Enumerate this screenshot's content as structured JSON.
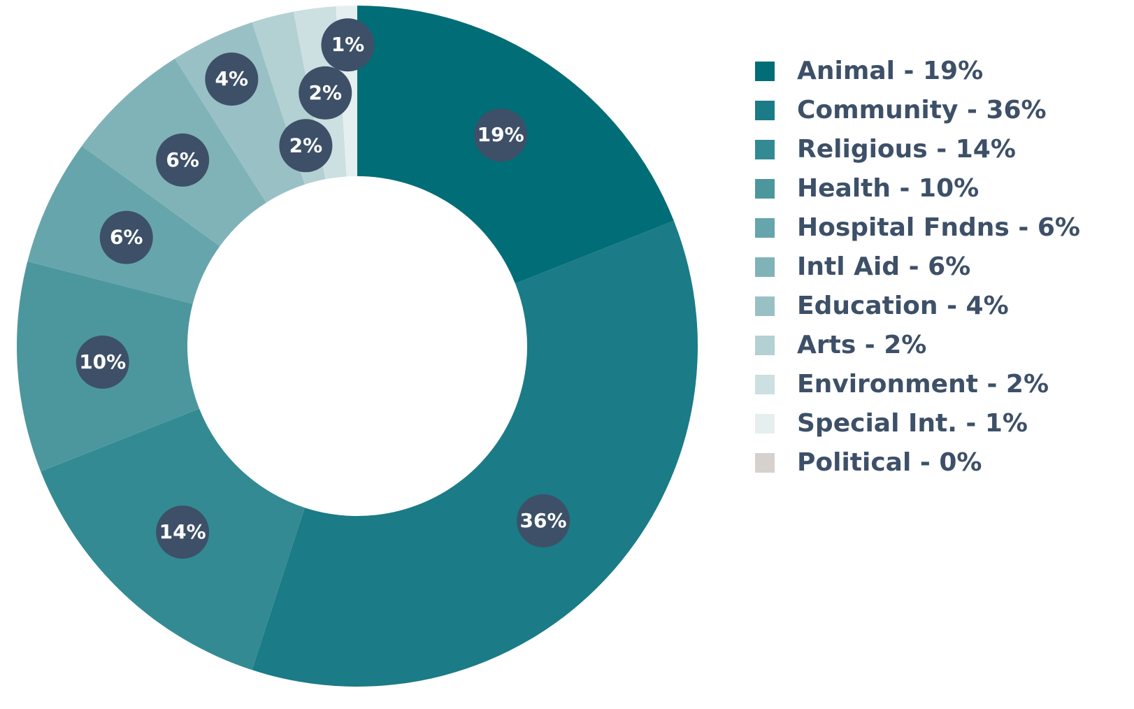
{
  "chart_data": {
    "type": "donut",
    "categories": [
      "Animal",
      "Community",
      "Religious",
      "Health",
      "Hospital Fndns",
      "Intl Aid",
      "Education",
      "Arts",
      "Environment",
      "Special Int.",
      "Political"
    ],
    "values": [
      19,
      36,
      14,
      10,
      6,
      6,
      4,
      2,
      2,
      1,
      0
    ],
    "value_labels": [
      "19%",
      "36%",
      "14%",
      "10%",
      "6%",
      "6%",
      "4%",
      "2%",
      "2%",
      "1%",
      null
    ],
    "legend_labels": [
      "Animal - 19%",
      "Community - 36%",
      "Religious - 14%",
      "Health - 10%",
      "Hospital Fndns - 6%",
      "Intl Aid - 6%",
      "Education - 4%",
      "Arts - 2%",
      "Environment - 2%",
      "Special Int. - 1%",
      "Political - 0%"
    ],
    "colors": [
      "#006d77",
      "#1b7b87",
      "#338a93",
      "#4c979e",
      "#66a5ab",
      "#80b3b8",
      "#99c1c5",
      "#b3d0d3",
      "#ccdfe1",
      "#e5eff0",
      "#d6d1cd"
    ],
    "legend": "right"
  }
}
